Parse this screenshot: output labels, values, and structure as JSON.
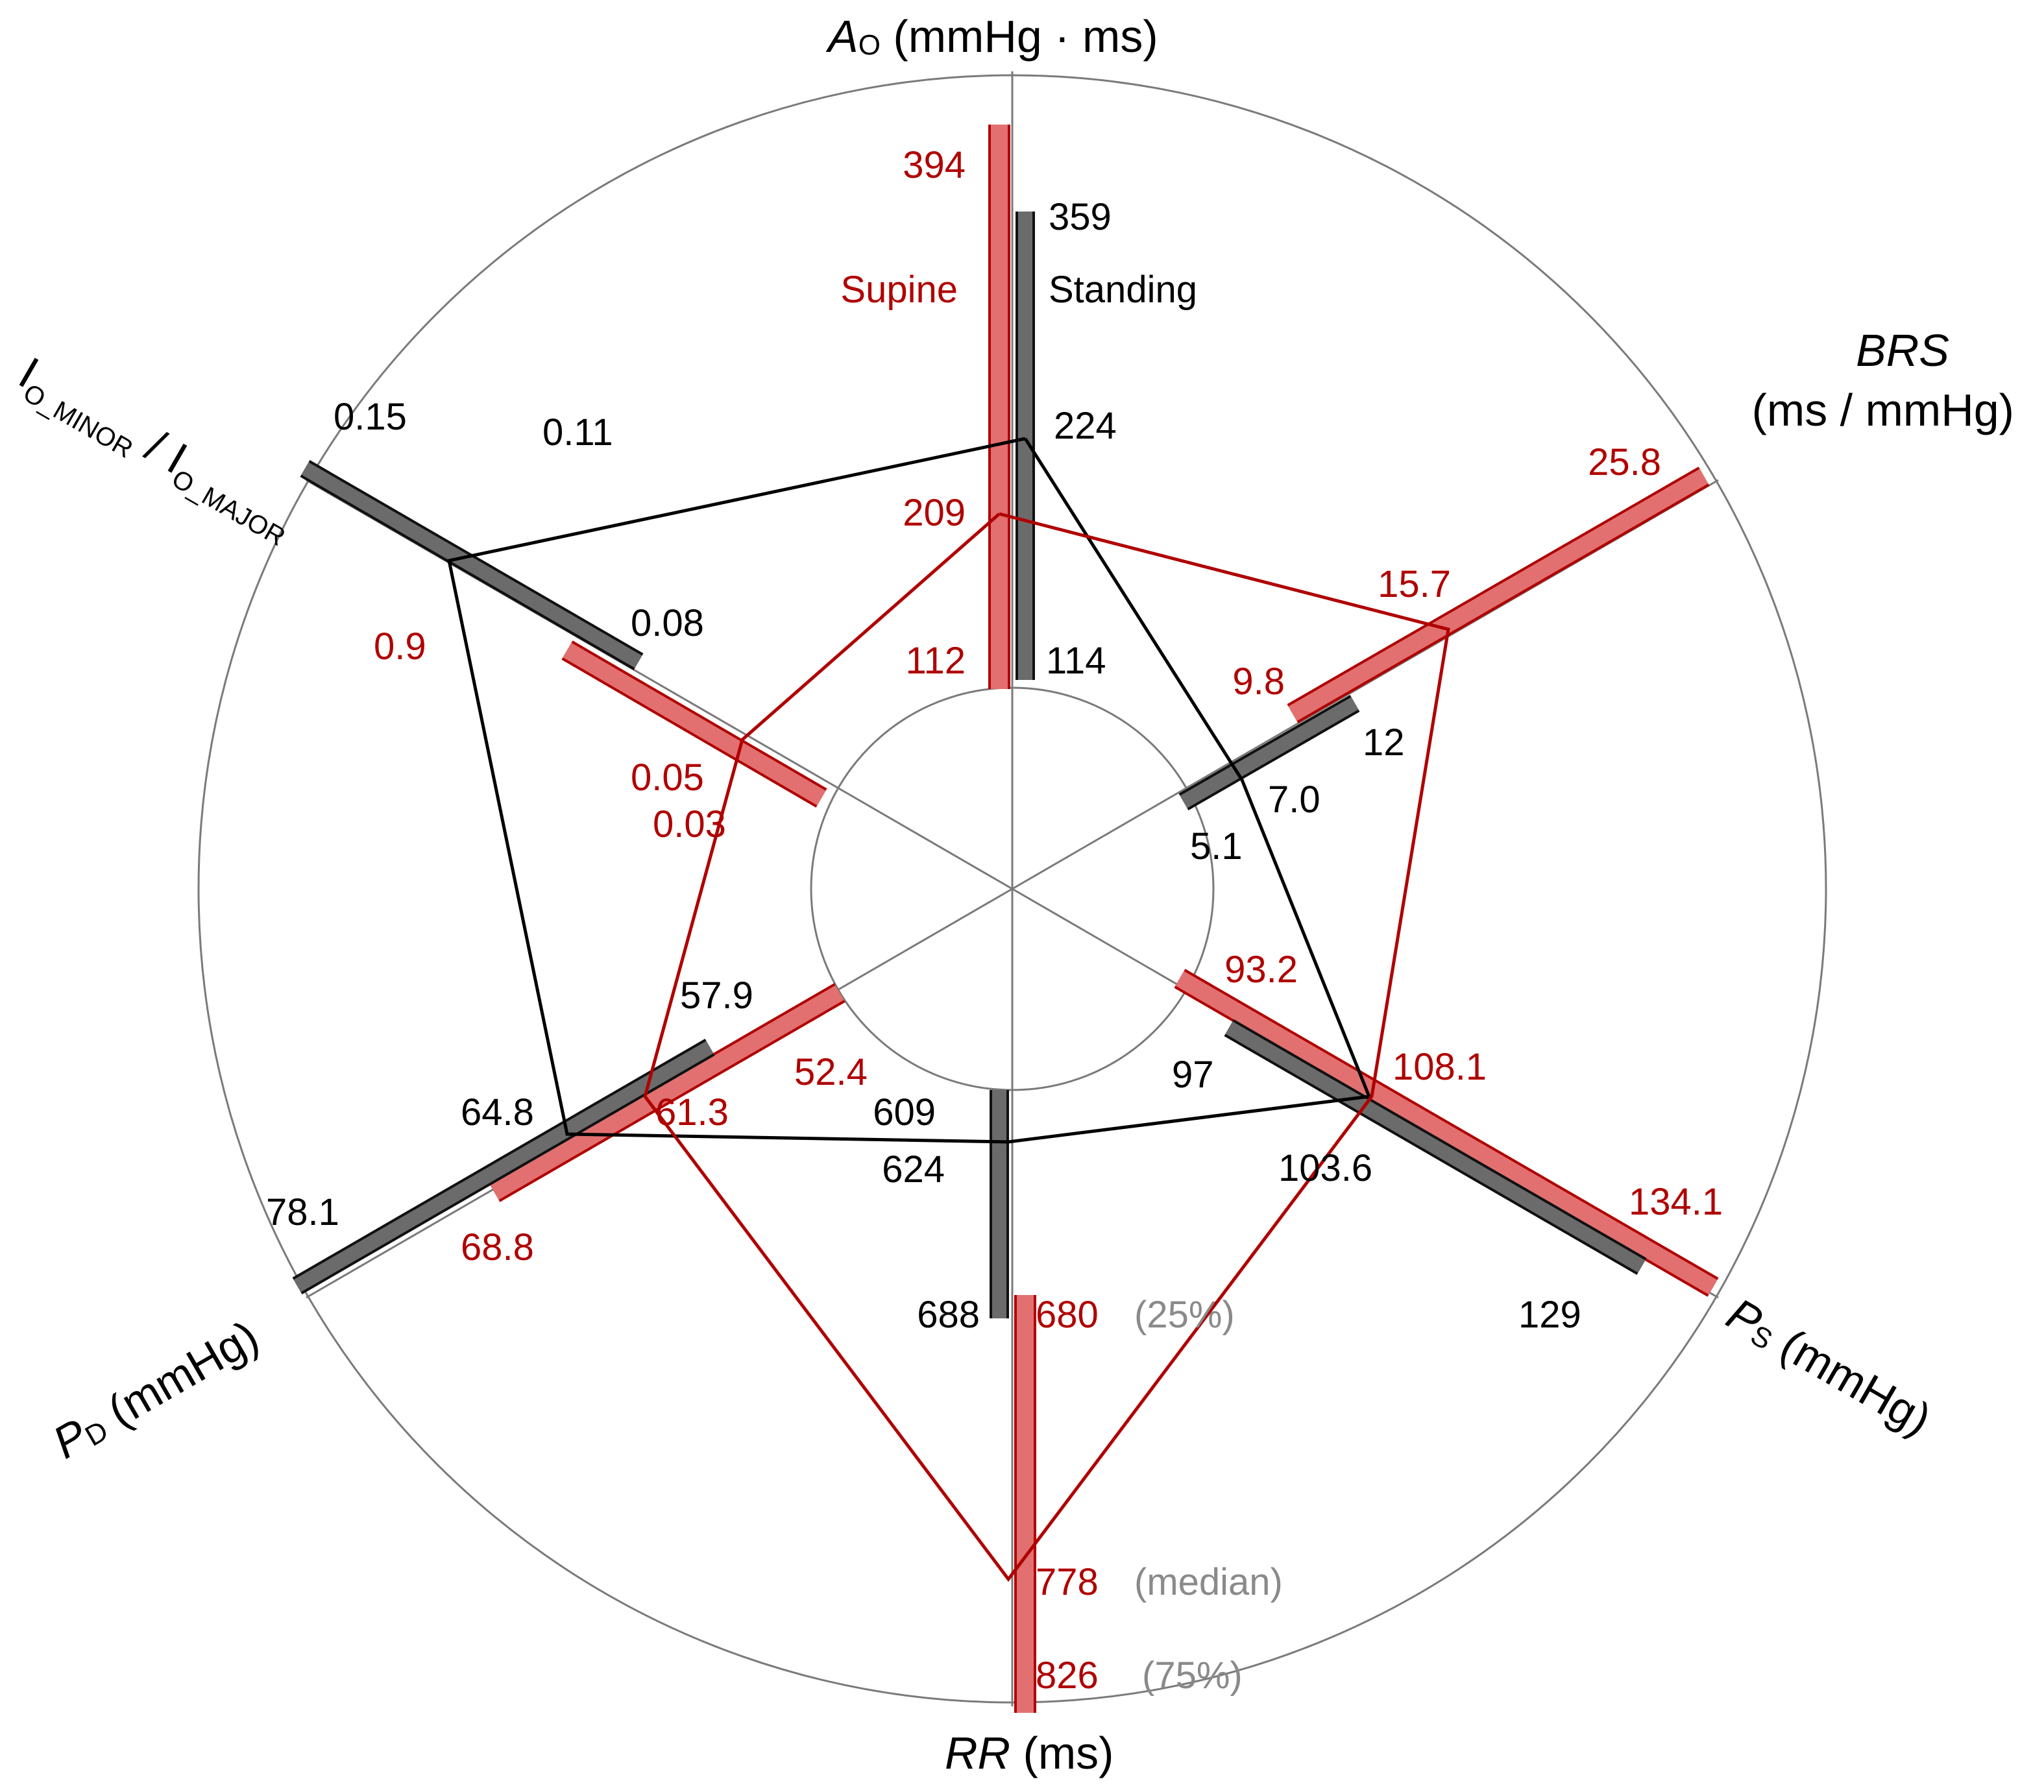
{
  "chart_data": {
    "type": "radar",
    "series": [
      {
        "name": "Supine",
        "color": "#b00000",
        "fill": "#e06a6a",
        "axes": {
          "A_O": {
            "p25": 112,
            "median": 209,
            "p75": 394
          },
          "BRS": {
            "p25": 9.8,
            "median": 15.7,
            "p75": 25.8
          },
          "P_S": {
            "p25": 93.2,
            "median": 108.1,
            "p75": 134.1
          },
          "RR": {
            "p25": 680,
            "median": 778,
            "p75": 826
          },
          "P_D": {
            "p25": 52.4,
            "median": 61.3,
            "p75": 68.8
          },
          "I_ratio": {
            "p25": 0.03,
            "median": 0.05,
            "p75": 0.9
          }
        }
      },
      {
        "name": "Standing",
        "color": "#000000",
        "fill": "#6b6b6b",
        "axes": {
          "A_O": {
            "p25": 114,
            "median": 224,
            "p75": 359
          },
          "BRS": {
            "p25": 5.1,
            "median": 7.0,
            "p75": 12
          },
          "P_S": {
            "p25": 97,
            "median": 103.6,
            "p75": 129
          },
          "RR": {
            "p25": 609,
            "median": 624,
            "p75": 688
          },
          "P_D": {
            "p25": 57.9,
            "median": 64.8,
            "p75": 78.1
          },
          "I_ratio": {
            "p25": 0.08,
            "median": 0.11,
            "p75": 0.15
          }
        }
      }
    ],
    "axis_labels": {
      "A_O": {
        "main": "A",
        "sub": "O",
        "unit": " (mmHg · ms)"
      },
      "BRS": {
        "line1": "BRS",
        "line2": "(ms / mmHg)"
      },
      "P_S": {
        "main": "P",
        "sub": "S",
        "unit": " (mmHg)"
      },
      "RR": {
        "main": "RR",
        "unit": " (ms)"
      },
      "P_D": {
        "main": "P",
        "sub": "D",
        "unit": " (mmHg)"
      },
      "I_ratio": {
        "p1": "I",
        "s1": "O_MINOR",
        "mid": " / I",
        "s2": "O_MAJOR"
      }
    },
    "series_labels": {
      "supine": "Supine",
      "standing": "Standing"
    },
    "percentile_labels": {
      "p25": "(25%)",
      "median": "(median)",
      "p75": "(75%)"
    },
    "value_labels": [
      {
        "text": "394",
        "color": "red"
      },
      {
        "text": "359",
        "color": "black"
      },
      {
        "text": "224",
        "color": "black"
      },
      {
        "text": "209",
        "color": "red"
      },
      {
        "text": "112",
        "color": "red"
      },
      {
        "text": "114",
        "color": "black"
      },
      {
        "text": "25.8",
        "color": "red"
      },
      {
        "text": "15.7",
        "color": "red"
      },
      {
        "text": "9.8",
        "color": "red"
      },
      {
        "text": "12",
        "color": "black"
      },
      {
        "text": "7.0",
        "color": "black"
      },
      {
        "text": "5.1",
        "color": "black"
      },
      {
        "text": "93.2",
        "color": "red"
      },
      {
        "text": "97",
        "color": "black"
      },
      {
        "text": "108.1",
        "color": "red"
      },
      {
        "text": "103.6",
        "color": "black"
      },
      {
        "text": "134.1",
        "color": "red"
      },
      {
        "text": "129",
        "color": "black"
      },
      {
        "text": "609",
        "color": "black"
      },
      {
        "text": "624",
        "color": "black"
      },
      {
        "text": "688",
        "color": "black"
      },
      {
        "text": "680",
        "color": "red"
      },
      {
        "text": "778",
        "color": "red"
      },
      {
        "text": "826",
        "color": "red"
      },
      {
        "text": "57.9",
        "color": "black"
      },
      {
        "text": "52.4",
        "color": "red"
      },
      {
        "text": "64.8",
        "color": "black"
      },
      {
        "text": "61.3",
        "color": "red"
      },
      {
        "text": "78.1",
        "color": "black"
      },
      {
        "text": "68.8",
        "color": "red"
      },
      {
        "text": "0.15",
        "color": "black"
      },
      {
        "text": "0.11",
        "color": "black"
      },
      {
        "text": "0.08",
        "color": "black"
      },
      {
        "text": "0.9",
        "color": "red"
      },
      {
        "text": "0.05",
        "color": "red"
      },
      {
        "text": "0.03",
        "color": "red"
      }
    ]
  }
}
